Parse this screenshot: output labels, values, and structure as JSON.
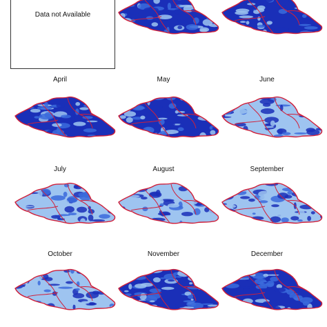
{
  "unavailable_note": "Data not Available",
  "months": [
    {
      "label": "",
      "available": true
    },
    {
      "label": "",
      "available": true
    },
    {
      "label": "April",
      "available": true
    },
    {
      "label": "May",
      "available": true
    },
    {
      "label": "June",
      "available": true
    },
    {
      "label": "July",
      "available": true
    },
    {
      "label": "August",
      "available": true
    },
    {
      "label": "September",
      "available": true
    },
    {
      "label": "October",
      "available": true
    },
    {
      "label": "November",
      "available": true
    },
    {
      "label": "December",
      "available": true
    }
  ],
  "colors": {
    "dark": "#1a2fb8",
    "mid": "#3b6bdc",
    "light": "#9ec4f0",
    "outline": "#d0203a"
  },
  "snow_level": [
    0.3,
    0.35,
    0.35,
    0.45,
    0.7,
    0.85,
    0.8,
    0.75,
    0.7,
    0.45,
    0.35
  ]
}
